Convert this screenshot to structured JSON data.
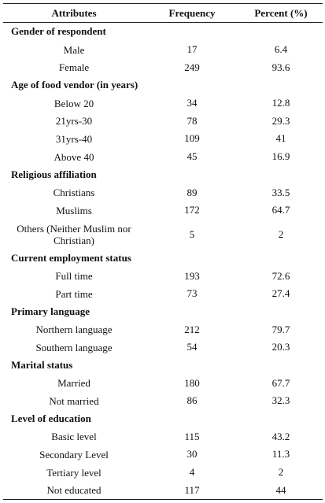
{
  "headers": [
    "Attributes",
    "Frequency",
    "Percent (%)"
  ],
  "rows": [
    {
      "kind": "section",
      "label": "Gender of respondent"
    },
    {
      "kind": "data",
      "label": "Male",
      "frequency": "17",
      "percent": "6.4"
    },
    {
      "kind": "data",
      "label": "Female",
      "frequency": "249",
      "percent": "93.6"
    },
    {
      "kind": "section",
      "label": "Age of food vendor (in years)"
    },
    {
      "kind": "data",
      "label": "Below 20",
      "frequency": "34",
      "percent": "12.8"
    },
    {
      "kind": "data",
      "label": "21yrs-30",
      "frequency": "78",
      "percent": "29.3"
    },
    {
      "kind": "data",
      "label": "31yrs-40",
      "frequency": "109",
      "percent": "41"
    },
    {
      "kind": "data",
      "label": "Above 40",
      "frequency": "45",
      "percent": "16.9"
    },
    {
      "kind": "section",
      "label": "Religious affiliation"
    },
    {
      "kind": "data",
      "label": "Christians",
      "frequency": "89",
      "percent": "33.5"
    },
    {
      "kind": "data",
      "label": "Muslims",
      "frequency": "172",
      "percent": "64.7"
    },
    {
      "kind": "data",
      "label": "Others (Neither Muslim nor Christian)",
      "frequency": "5",
      "percent": "2",
      "tall": true
    },
    {
      "kind": "section",
      "label": "Current employment status"
    },
    {
      "kind": "data",
      "label": "Full time",
      "frequency": "193",
      "percent": "72.6"
    },
    {
      "kind": "data",
      "label": "Part time",
      "frequency": "73",
      "percent": "27.4"
    },
    {
      "kind": "section",
      "label": "Primary language"
    },
    {
      "kind": "data",
      "label": "Northern language",
      "frequency": "212",
      "percent": "79.7"
    },
    {
      "kind": "data",
      "label": "Southern language",
      "frequency": "54",
      "percent": "20.3"
    },
    {
      "kind": "section",
      "label": "Marital status"
    },
    {
      "kind": "data",
      "label": "Married",
      "frequency": "180",
      "percent": "67.7"
    },
    {
      "kind": "data",
      "label": "Not married",
      "frequency": "86",
      "percent": "32.3"
    },
    {
      "kind": "section",
      "label": "Level of education"
    },
    {
      "kind": "data",
      "label": "Basic level",
      "frequency": "115",
      "percent": "43.2"
    },
    {
      "kind": "data",
      "label": "Secondary Level",
      "frequency": "30",
      "percent": "11.3"
    },
    {
      "kind": "data",
      "label": "Tertiary level",
      "frequency": "4",
      "percent": "2"
    },
    {
      "kind": "data",
      "label": "Not educated",
      "frequency": "117",
      "percent": "44"
    }
  ]
}
